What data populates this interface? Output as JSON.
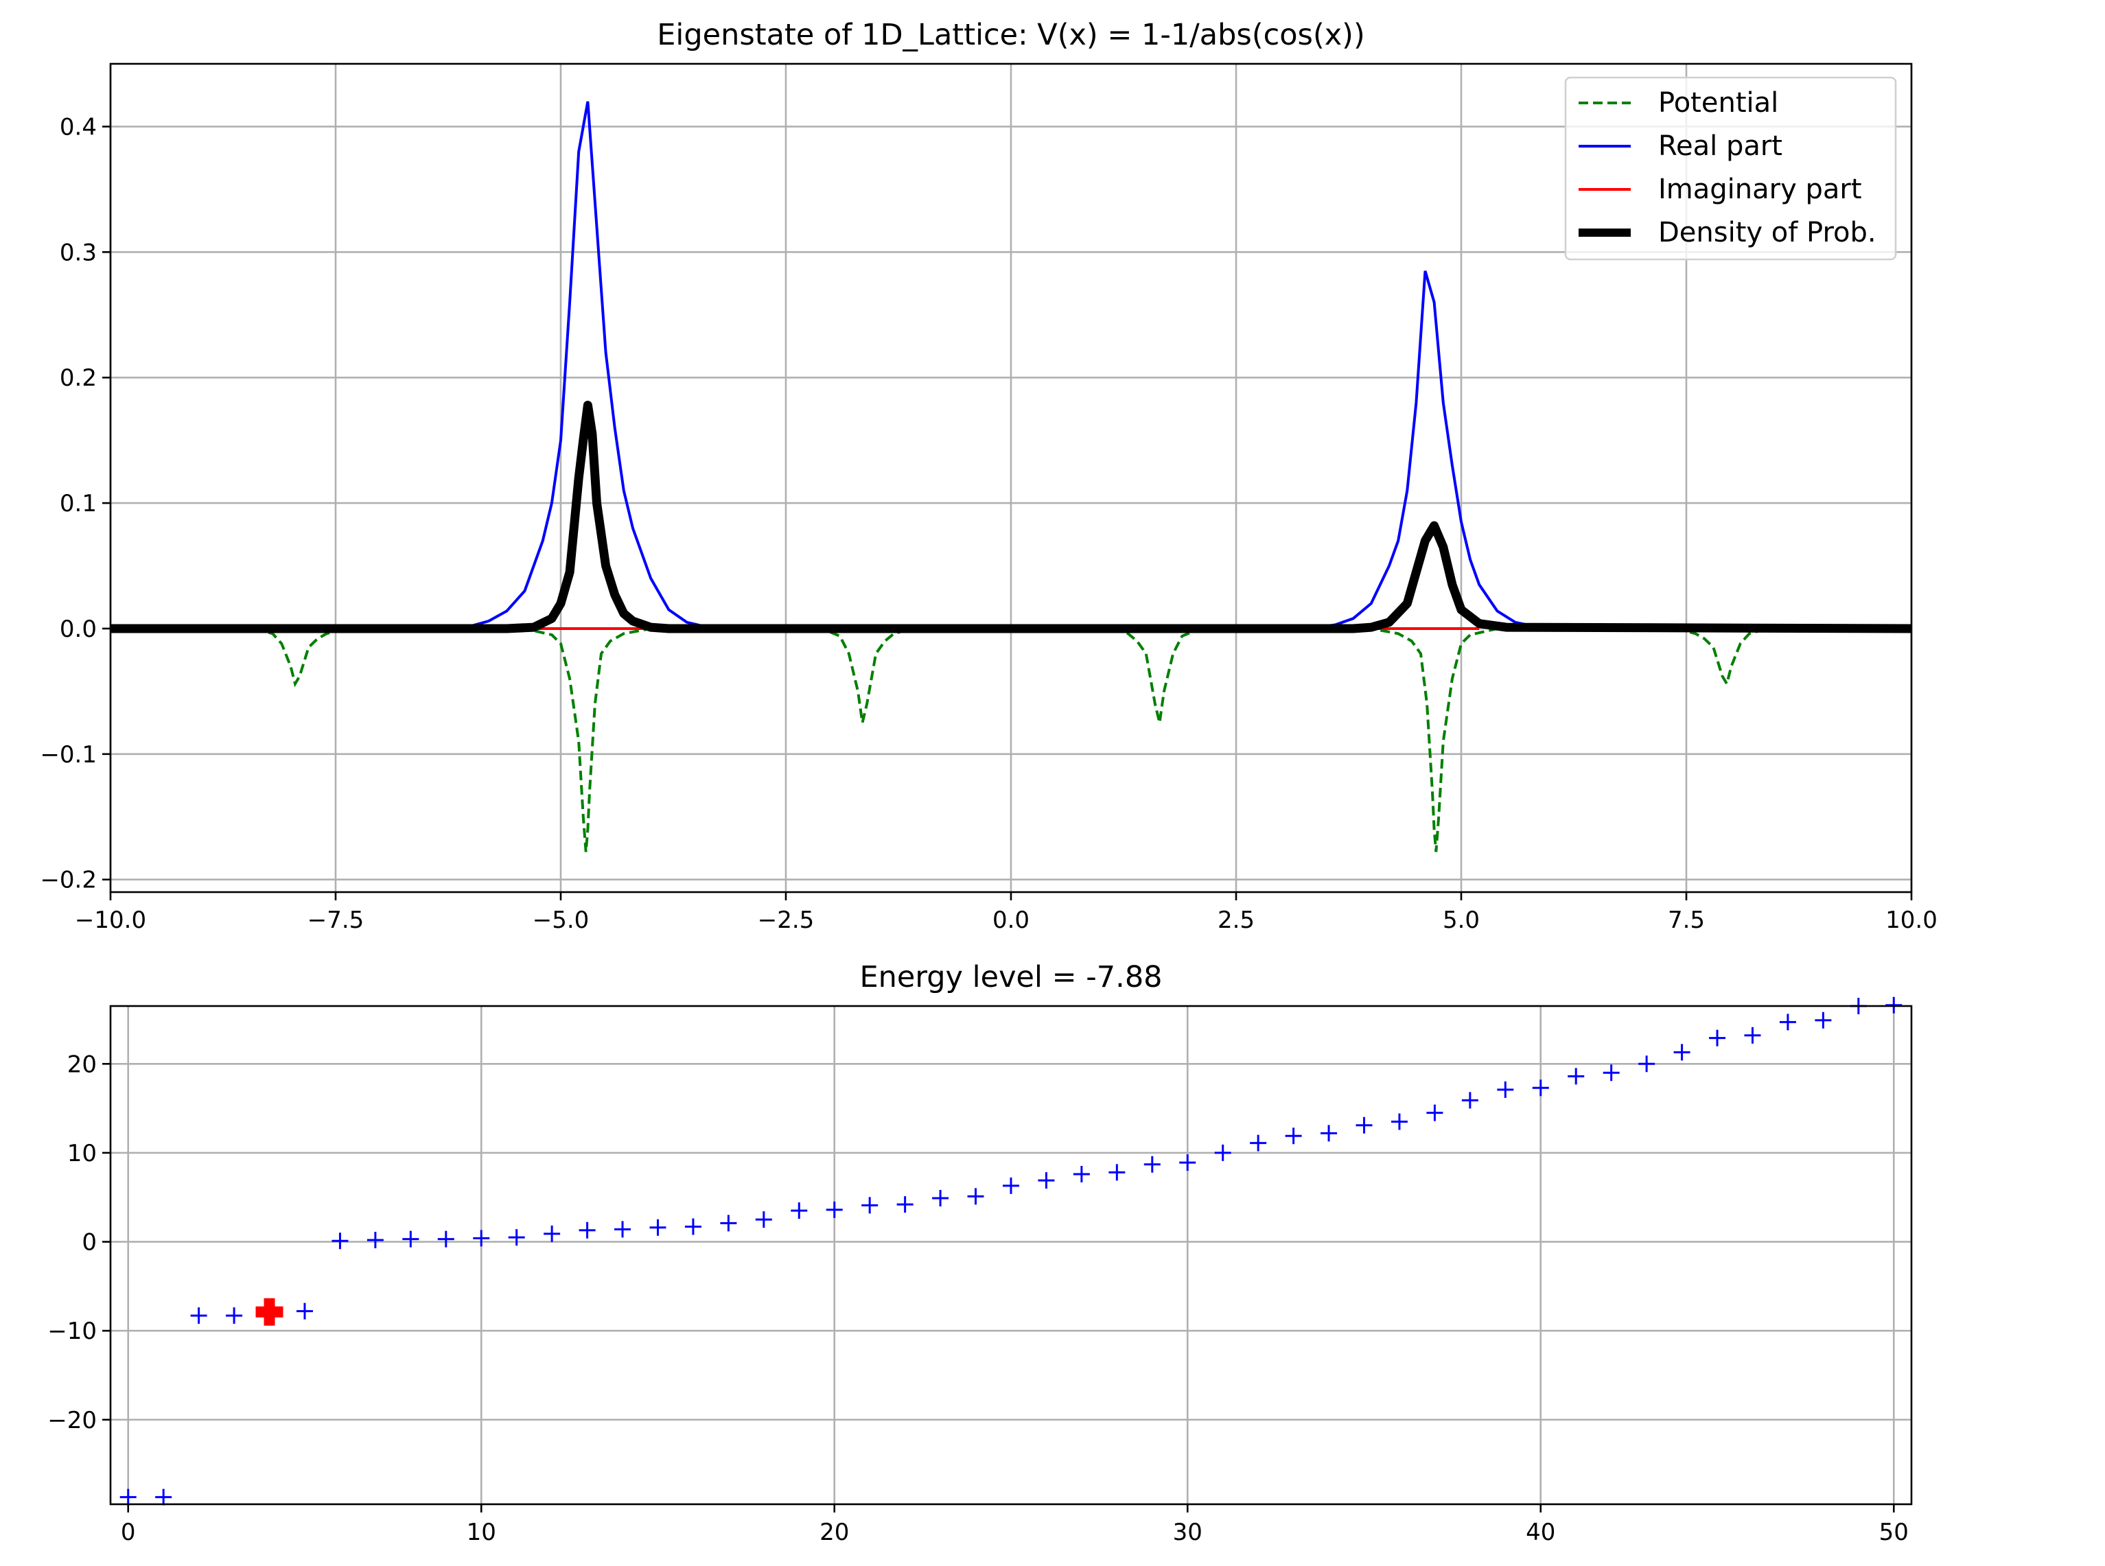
{
  "chart_data": [
    {
      "type": "line",
      "title": "Eigenstate of 1D_Lattice: V(x) = 1-1/abs(cos(x))",
      "xlabel": "",
      "ylabel": "",
      "xlim": [
        -10,
        10
      ],
      "ylim": [
        -0.21,
        0.45
      ],
      "xticks": [
        -10,
        -7.5,
        -5,
        -2.5,
        0,
        2.5,
        5,
        7.5,
        10
      ],
      "xtick_labels": [
        "−10.0",
        "−7.5",
        "−5.0",
        "−2.5",
        "0.0",
        "2.5",
        "5.0",
        "7.5",
        "10.0"
      ],
      "yticks": [
        -0.2,
        -0.1,
        0.0,
        0.1,
        0.2,
        0.3,
        0.4
      ],
      "ytick_labels": [
        "−0.2",
        "−0.1",
        "0.0",
        "0.1",
        "0.2",
        "0.3",
        "0.4"
      ],
      "grid": true,
      "legend_position": "top-right",
      "series": [
        {
          "name": "Potential",
          "color": "#008000",
          "style": "dashed",
          "x": [
            -10,
            -8.4,
            -8.2,
            -8.1,
            -8.0,
            -7.95,
            -7.9,
            -7.8,
            -7.7,
            -7.6,
            -7.4,
            -5.4,
            -5.1,
            -5.0,
            -4.9,
            -4.8,
            -4.75,
            -4.72,
            -4.7,
            -4.68,
            -4.62,
            -4.55,
            -4.45,
            -4.3,
            -4.0,
            -2.1,
            -1.9,
            -1.8,
            -1.7,
            -1.65,
            -1.6,
            -1.5,
            -1.4,
            -1.3,
            -1.1,
            1.1,
            1.3,
            1.4,
            1.5,
            1.6,
            1.65,
            1.7,
            1.8,
            1.9,
            2.1,
            4.0,
            4.3,
            4.45,
            4.55,
            4.62,
            4.68,
            4.7,
            4.72,
            4.75,
            4.8,
            4.9,
            5.0,
            5.1,
            5.4,
            7.4,
            7.6,
            7.7,
            7.8,
            7.9,
            7.95,
            8.0,
            8.1,
            8.2,
            8.4,
            10
          ],
          "values": [
            0,
            0,
            -0.004,
            -0.012,
            -0.03,
            -0.044,
            -0.038,
            -0.015,
            -0.008,
            -0.004,
            0,
            0,
            -0.005,
            -0.012,
            -0.04,
            -0.09,
            -0.15,
            -0.178,
            -0.16,
            -0.13,
            -0.06,
            -0.02,
            -0.01,
            -0.004,
            0,
            0,
            -0.006,
            -0.02,
            -0.05,
            -0.075,
            -0.06,
            -0.02,
            -0.01,
            -0.004,
            0,
            0,
            -0.004,
            -0.01,
            -0.02,
            -0.06,
            -0.075,
            -0.05,
            -0.02,
            -0.006,
            0,
            0,
            -0.004,
            -0.01,
            -0.02,
            -0.06,
            -0.13,
            -0.16,
            -0.178,
            -0.15,
            -0.09,
            -0.04,
            -0.012,
            -0.005,
            0,
            0,
            -0.004,
            -0.008,
            -0.015,
            -0.038,
            -0.044,
            -0.03,
            -0.012,
            -0.004,
            0,
            0
          ]
        },
        {
          "name": "Real part",
          "color": "#0000ff",
          "style": "solid",
          "x": [
            -10,
            -6.3,
            -6.0,
            -5.8,
            -5.6,
            -5.4,
            -5.2,
            -5.1,
            -5.0,
            -4.9,
            -4.8,
            -4.7,
            -4.6,
            -4.5,
            -4.4,
            -4.3,
            -4.2,
            -4.0,
            -3.8,
            -3.6,
            -3.3,
            3.3,
            3.6,
            3.8,
            4.0,
            4.2,
            4.3,
            4.4,
            4.5,
            4.6,
            4.7,
            4.8,
            4.9,
            5.0,
            5.1,
            5.2,
            5.4,
            5.6,
            5.8,
            6.0,
            10
          ],
          "values": [
            0,
            0,
            0.002,
            0.006,
            0.014,
            0.03,
            0.07,
            0.1,
            0.15,
            0.26,
            0.38,
            0.42,
            0.32,
            0.22,
            0.16,
            0.11,
            0.08,
            0.04,
            0.015,
            0.005,
            0,
            0,
            0.003,
            0.008,
            0.02,
            0.05,
            0.07,
            0.11,
            0.18,
            0.285,
            0.26,
            0.18,
            0.13,
            0.085,
            0.055,
            0.035,
            0.014,
            0.005,
            0.002,
            0,
            0
          ]
        },
        {
          "name": "Imaginary part",
          "color": "#ff0000",
          "style": "solid",
          "x": [
            -5.3,
            -4.1,
            4.0,
            5.2
          ],
          "values": [
            0,
            0,
            0,
            0
          ]
        },
        {
          "name": "Density of Prob.",
          "color": "#000000",
          "style": "solid-thick",
          "x": [
            -10,
            -5.6,
            -5.3,
            -5.1,
            -5.0,
            -4.9,
            -4.8,
            -4.75,
            -4.7,
            -4.65,
            -4.6,
            -4.5,
            -4.4,
            -4.3,
            -4.2,
            -4.0,
            -3.8,
            3.8,
            4.0,
            4.2,
            4.4,
            4.5,
            4.6,
            4.7,
            4.8,
            4.9,
            5.0,
            5.2,
            5.5,
            10
          ],
          "values": [
            0,
            0,
            0.001,
            0.008,
            0.02,
            0.045,
            0.12,
            0.15,
            0.178,
            0.155,
            0.1,
            0.05,
            0.027,
            0.012,
            0.006,
            0.001,
            0,
            0,
            0.001,
            0.005,
            0.02,
            0.045,
            0.07,
            0.082,
            0.065,
            0.035,
            0.015,
            0.004,
            0.001,
            0
          ]
        }
      ]
    },
    {
      "type": "scatter",
      "title": "Energy level = -7.88",
      "xlabel": "",
      "ylabel": "",
      "xlim": [
        -0.5,
        50.5
      ],
      "ylim": [
        -29.5,
        26.5
      ],
      "xticks": [
        0,
        10,
        20,
        30,
        40,
        50
      ],
      "xtick_labels": [
        "0",
        "10",
        "20",
        "30",
        "40",
        "50"
      ],
      "yticks": [
        -20,
        -10,
        0,
        10,
        20
      ],
      "ytick_labels": [
        "−20",
        "−10",
        "0",
        "10",
        "20"
      ],
      "grid": true,
      "series": [
        {
          "marker": "+",
          "color": "#0000ff",
          "x": [
            0,
            1,
            2,
            3,
            4,
            5,
            6,
            7,
            8,
            9,
            10,
            11,
            12,
            13,
            14,
            15,
            16,
            17,
            18,
            19,
            20,
            21,
            22,
            23,
            24,
            25,
            26,
            27,
            28,
            29,
            30,
            31,
            32,
            33,
            34,
            35,
            36,
            37,
            38,
            39,
            40,
            41,
            42,
            43,
            44,
            45,
            46,
            47,
            48,
            49,
            50
          ],
          "values": [
            -28.7,
            -28.7,
            -8.3,
            -8.3,
            -7.88,
            -7.8,
            0.1,
            0.2,
            0.3,
            0.3,
            0.4,
            0.5,
            0.9,
            1.3,
            1.4,
            1.6,
            1.7,
            2.1,
            2.5,
            3.5,
            3.6,
            4.1,
            4.2,
            4.9,
            5.1,
            6.3,
            6.9,
            7.6,
            7.8,
            8.7,
            8.9,
            10.0,
            11.1,
            11.9,
            12.2,
            13.1,
            13.5,
            14.5,
            15.9,
            17.1,
            17.3,
            18.6,
            19.0,
            20.0,
            21.3,
            22.9,
            23.2,
            24.7,
            24.9,
            26.5,
            26.6
          ]
        }
      ],
      "highlight": {
        "x": 4,
        "value": -7.88,
        "marker": "P",
        "color": "#ff0000"
      }
    }
  ]
}
